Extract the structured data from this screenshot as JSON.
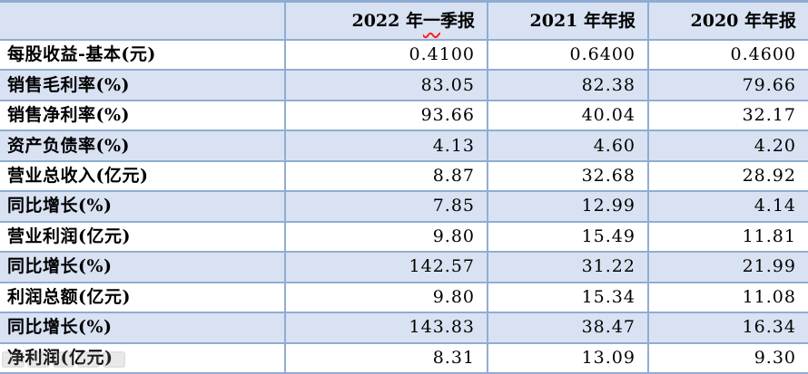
{
  "colors": {
    "stripe": "#d9e2f2",
    "border": "#8fadd3",
    "top-border": "#8fadd3",
    "squiggle": "#ff1f1f",
    "text": "#000000"
  },
  "table": {
    "corner_label": "",
    "columns": [
      {
        "pre": "2022 年",
        "wavy": "一",
        "post": "季报",
        "full": "2022 年一季报"
      },
      {
        "full": "2021 年年报"
      },
      {
        "full": "2020 年年报"
      }
    ],
    "rows": [
      {
        "label": "每股收益-基本(元)",
        "values": [
          "0.4100",
          "0.6400",
          "0.4600"
        ]
      },
      {
        "label": "销售毛利率(%)",
        "values": [
          "83.05",
          "82.38",
          "79.66"
        ]
      },
      {
        "label": "销售净利率(%)",
        "values": [
          "93.66",
          "40.04",
          "32.17"
        ]
      },
      {
        "label": "资产负债率(%)",
        "values": [
          "4.13",
          "4.60",
          "4.20"
        ]
      },
      {
        "label": "营业总收入(亿元)",
        "values": [
          "8.87",
          "32.68",
          "28.92"
        ]
      },
      {
        "label": "同比增长(%)",
        "values": [
          "7.85",
          "12.99",
          "4.14"
        ]
      },
      {
        "label": "营业利润(亿元)",
        "values": [
          "9.80",
          "15.49",
          "11.81"
        ]
      },
      {
        "label": "同比增长(%)",
        "values": [
          "142.57",
          "31.22",
          "21.99"
        ]
      },
      {
        "label": "利润总额(亿元)",
        "values": [
          "9.80",
          "15.34",
          "11.08"
        ]
      },
      {
        "label": "同比增长(%)",
        "values": [
          "143.83",
          "38.47",
          "16.34"
        ]
      },
      {
        "label": "净利润(亿元)",
        "values": [
          "8.31",
          "13.09",
          "9.30"
        ]
      }
    ]
  }
}
